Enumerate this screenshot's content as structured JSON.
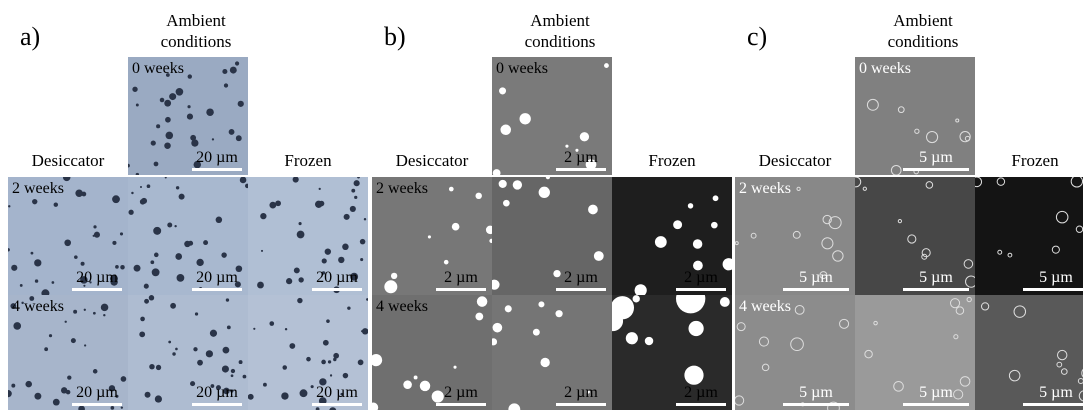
{
  "panels": [
    {
      "label": "a)",
      "top_header": "Ambient conditions",
      "left_header": "Desiccator",
      "right_header": "Frozen",
      "tiles": [
        {
          "label": "0 weeks",
          "scale": "20 µm"
        },
        {
          "label": "2 weeks",
          "scale": "20 µm"
        },
        {
          "scale": "20 µm"
        },
        {
          "scale": "20 µm"
        },
        {
          "label": "4 weeks",
          "scale": "20 µm"
        },
        {
          "scale": "20 µm"
        },
        {
          "scale": "20 µm"
        }
      ]
    },
    {
      "label": "b)",
      "top_header": "Ambient conditions",
      "left_header": "Desiccator",
      "right_header": "Frozen",
      "tiles": [
        {
          "label": "0 weeks",
          "scale": "2 µm"
        },
        {
          "label": "2 weeks",
          "scale": "2 µm"
        },
        {
          "scale": "2 µm"
        },
        {
          "scale": "2 µm"
        },
        {
          "label": "4 weeks",
          "scale": "2 µm"
        },
        {
          "scale": "2 µm"
        },
        {
          "scale": "2 µm"
        }
      ]
    },
    {
      "label": "c)",
      "top_header": "Ambient conditions",
      "left_header": "Desiccator",
      "right_header": "Frozen",
      "tiles": [
        {
          "label": "0 weeks",
          "scale": "5 µm"
        },
        {
          "label": "2 weeks",
          "scale": "5 µm"
        },
        {
          "scale": "5 µm"
        },
        {
          "scale": "5 µm"
        },
        {
          "label": "4 weeks",
          "scale": "5 µm"
        },
        {
          "scale": "5 µm"
        },
        {
          "scale": "5 µm"
        }
      ]
    }
  ]
}
